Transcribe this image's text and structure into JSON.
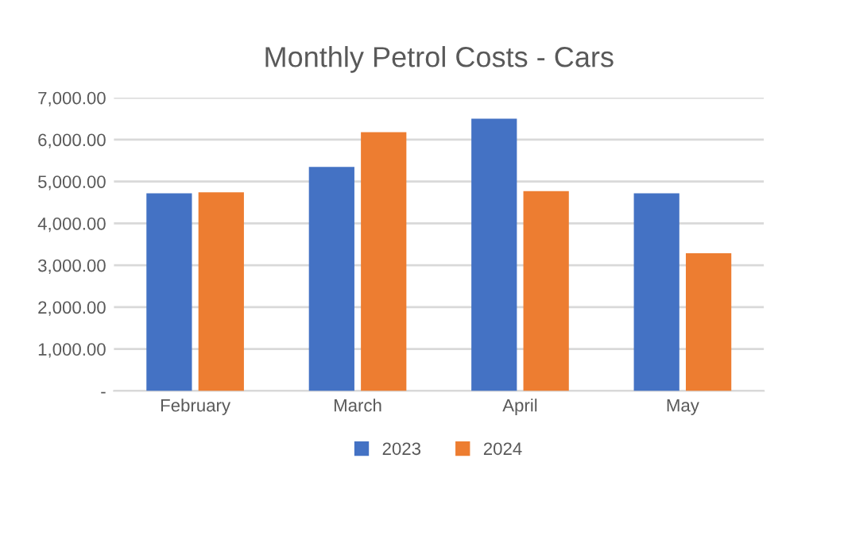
{
  "chart_data": {
    "type": "bar",
    "title": "Monthly Petrol Costs - Cars",
    "categories": [
      "February",
      "March",
      "April",
      "May"
    ],
    "series": [
      {
        "name": "2023",
        "color": "#4472c4",
        "values": [
          4720,
          5350,
          6500,
          4720
        ]
      },
      {
        "name": "2024",
        "color": "#ed7d31",
        "values": [
          4740,
          6180,
          4770,
          3290
        ]
      }
    ],
    "ylim": [
      0,
      7000
    ],
    "yticks": [
      {
        "value": 0,
        "label": "-"
      },
      {
        "value": 1000,
        "label": "1,000.00"
      },
      {
        "value": 2000,
        "label": "2,000.00"
      },
      {
        "value": 3000,
        "label": "3,000.00"
      },
      {
        "value": 4000,
        "label": "4,000.00"
      },
      {
        "value": 5000,
        "label": "5,000.00"
      },
      {
        "value": 6000,
        "label": "6,000.00"
      },
      {
        "value": 7000,
        "label": "7,000.00"
      }
    ],
    "grid": "y",
    "legend": "bottom"
  }
}
